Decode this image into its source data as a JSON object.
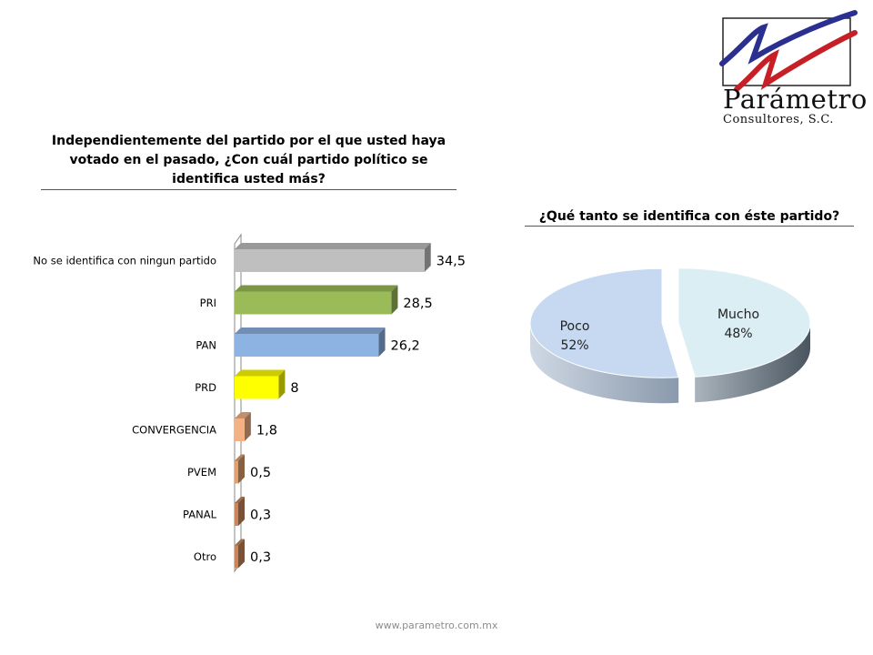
{
  "logo": {
    "line1": "Parámetro",
    "line2": "Consultores, S.C."
  },
  "footer": "www.parametro.com.mx",
  "chart_data": [
    {
      "type": "bar",
      "title": "Independientemente del partido por el que usted haya votado en el pasado, ¿Con cuál partido político se identifica usted más?",
      "categories": [
        "No se identifica con ningun partido",
        "PRI",
        "PAN",
        "PRD",
        "CONVERGENCIA",
        "PVEM",
        "PANAL",
        "Otro"
      ],
      "values": [
        34.5,
        28.5,
        26.2,
        8,
        1.8,
        0.5,
        0.3,
        0.3
      ],
      "value_labels": [
        "34,5",
        "28,5",
        "26,2",
        "8",
        "1,8",
        "0,5",
        "0,3",
        "0,3"
      ],
      "colors": [
        "#bfbfbf",
        "#9bbb59",
        "#8db3e2",
        "#ffff00",
        "#f4b183",
        "#e0a070",
        "#c8875a",
        "#c8875a"
      ],
      "xlim": [
        0,
        40
      ],
      "grid": false,
      "orientation": "horizontal"
    },
    {
      "type": "pie",
      "title": "¿Qué tanto se identifica con éste partido?",
      "labels": [
        "Mucho",
        "Poco"
      ],
      "values": [
        48,
        52
      ],
      "value_labels": [
        "48%",
        "52%"
      ],
      "colors": [
        "#dbeef4",
        "#c6d9f1"
      ]
    }
  ]
}
